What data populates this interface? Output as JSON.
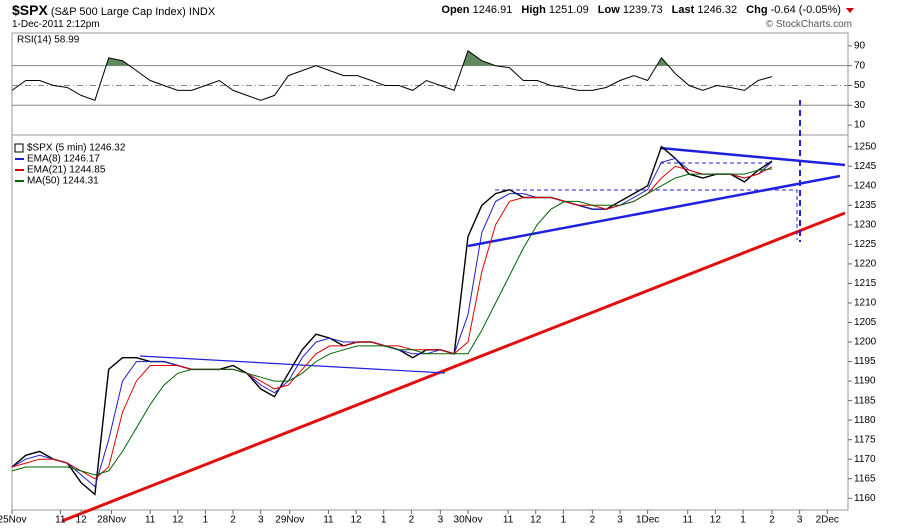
{
  "header": {
    "symbol": "$SPX",
    "name": "(S&P 500 Large Cap Index)",
    "exchange": "INDX",
    "datetime": "1-Dec-2011 2:12pm",
    "quote": [
      {
        "label": "Open",
        "value": 1246.91
      },
      {
        "label": "High",
        "value": 1251.09
      },
      {
        "label": "Low",
        "value": 1239.73
      },
      {
        "label": "Last",
        "value": 1246.32
      },
      {
        "label": "Chg",
        "value": -0.64,
        "pct": "(-0.05%)"
      }
    ],
    "credit": "© StockCharts.com"
  },
  "chart_data": [
    {
      "type": "line",
      "title": "RSI(14) 58.99",
      "color": "#000000",
      "fill_color": "#5f8a5f",
      "values": [
        45,
        55,
        55,
        50,
        48,
        40,
        35,
        78,
        75,
        65,
        55,
        50,
        45,
        45,
        50,
        55,
        45,
        40,
        35,
        40,
        60,
        65,
        70,
        65,
        60,
        60,
        55,
        50,
        50,
        45,
        55,
        50,
        45,
        85,
        75,
        70,
        68,
        55,
        55,
        50,
        48,
        45,
        45,
        48,
        55,
        60,
        55,
        78,
        62,
        50,
        45,
        50,
        48,
        45,
        55,
        58.99
      ],
      "xlim": [
        0,
        60.5
      ],
      "ylim": [
        0,
        103
      ],
      "yticks": [
        10,
        30,
        50,
        70,
        90
      ],
      "ref_lines": [
        70,
        50,
        30
      ]
    },
    {
      "type": "line",
      "series": [
        {
          "name": "$SPX (5 min) 1246.32",
          "color": "#000000",
          "values": [
            1168,
            1171,
            1172,
            1170,
            1169,
            1164,
            1161,
            1193,
            1196,
            1196,
            1195,
            1195,
            1194,
            1193,
            1193,
            1193,
            1194,
            1192,
            1188,
            1186,
            1192,
            1198,
            1202,
            1201,
            1199,
            1200,
            1200,
            1199,
            1198,
            1196,
            1198,
            1198,
            1197,
            1227,
            1235,
            1238,
            1239,
            1237,
            1237,
            1237,
            1236,
            1235,
            1234,
            1234,
            1236,
            1238,
            1240,
            1250,
            1247,
            1243,
            1242,
            1243,
            1243,
            1241,
            1244,
            1246.32
          ]
        },
        {
          "name": "EMA(8) 1246.17",
          "color": "#1f1fd0",
          "values": [
            1168,
            1170,
            1171,
            1170,
            1169,
            1166,
            1163,
            1175,
            1190,
            1195,
            1195,
            1195,
            1194,
            1193,
            1193,
            1193,
            1193,
            1192,
            1189,
            1187,
            1190,
            1196,
            1200,
            1201,
            1200,
            1200,
            1200,
            1199,
            1198,
            1197,
            1197,
            1198,
            1197,
            1207,
            1228,
            1236,
            1238,
            1238,
            1237,
            1237,
            1236,
            1235,
            1234,
            1234,
            1235,
            1237,
            1239,
            1246,
            1247,
            1244,
            1243,
            1243,
            1243,
            1242,
            1243,
            1246.17
          ]
        },
        {
          "name": "EMA(21) 1244.85",
          "color": "#e00000",
          "values": [
            1168,
            1169,
            1170,
            1170,
            1169,
            1167,
            1165,
            1168,
            1182,
            1190,
            1194,
            1194,
            1194,
            1193,
            1193,
            1193,
            1193,
            1192,
            1190,
            1188,
            1189,
            1193,
            1197,
            1199,
            1199,
            1200,
            1200,
            1199,
            1199,
            1198,
            1198,
            1198,
            1197,
            1200,
            1218,
            1230,
            1236,
            1237,
            1237,
            1237,
            1236,
            1235,
            1235,
            1234,
            1235,
            1236,
            1238,
            1242,
            1245,
            1244,
            1243,
            1243,
            1243,
            1242,
            1243,
            1244.85
          ]
        },
        {
          "name": "MA(50) 1244.31",
          "color": "#006400",
          "values": [
            1167,
            1168,
            1168,
            1168,
            1168,
            1167,
            1166,
            1167,
            1172,
            1178,
            1184,
            1189,
            1192,
            1193,
            1193,
            1193,
            1193,
            1192,
            1191,
            1190,
            1190,
            1192,
            1195,
            1197,
            1198,
            1199,
            1199,
            1199,
            1198,
            1198,
            1197,
            1197,
            1197,
            1197,
            1203,
            1210,
            1217,
            1224,
            1230,
            1234,
            1236,
            1236,
            1235,
            1235,
            1235,
            1236,
            1238,
            1240,
            1242,
            1243,
            1243,
            1243,
            1243,
            1243,
            1244,
            1244.31
          ]
        }
      ],
      "xlim": [
        0,
        60.5
      ],
      "ylim": [
        1157,
        1253
      ],
      "yticks": [
        1160,
        1165,
        1170,
        1175,
        1180,
        1185,
        1190,
        1195,
        1200,
        1205,
        1210,
        1215,
        1220,
        1225,
        1230,
        1235,
        1240,
        1245,
        1250
      ],
      "xticks": [
        {
          "value": 0,
          "label": "25Nov"
        },
        {
          "value": 3.5,
          "label": "11"
        },
        {
          "value": 5,
          "label": "12"
        },
        {
          "value": 7.2,
          "label": "28Nov"
        },
        {
          "value": 10,
          "label": "11"
        },
        {
          "value": 12,
          "label": "12"
        },
        {
          "value": 14,
          "label": "1"
        },
        {
          "value": 16,
          "label": "2"
        },
        {
          "value": 18,
          "label": "3"
        },
        {
          "value": 20.1,
          "label": "29Nov"
        },
        {
          "value": 22.9,
          "label": "11"
        },
        {
          "value": 24.9,
          "label": "12"
        },
        {
          "value": 26.9,
          "label": "1"
        },
        {
          "value": 28.9,
          "label": "2"
        },
        {
          "value": 31,
          "label": "3"
        },
        {
          "value": 33,
          "label": "30Nov"
        },
        {
          "value": 35.9,
          "label": "11"
        },
        {
          "value": 37.9,
          "label": "12"
        },
        {
          "value": 39.9,
          "label": "1"
        },
        {
          "value": 42,
          "label": "2"
        },
        {
          "value": 44,
          "label": "3"
        },
        {
          "value": 46,
          "label": "1Dec"
        },
        {
          "value": 48.9,
          "label": "11"
        },
        {
          "value": 50.9,
          "label": "12"
        },
        {
          "value": 52.9,
          "label": "1"
        },
        {
          "value": 55,
          "label": "2"
        },
        {
          "value": 57,
          "label": "3"
        },
        {
          "value": 59,
          "label": "2Dec"
        }
      ]
    }
  ]
}
